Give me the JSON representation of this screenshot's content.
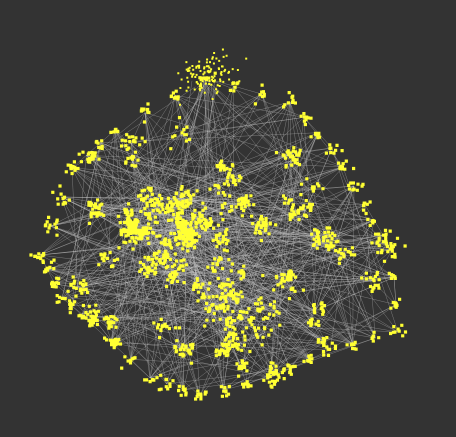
{
  "colors": {
    "background": "#333333",
    "node": "#ffff33",
    "edge": "#c8c8c8"
  },
  "graph": {
    "type": "network",
    "layout": "force-directed",
    "shape": "dense-polygon-cluster-with-top-apex-cluster",
    "edge_style": "thin-light-gray-lines",
    "node_style": "small-yellow-squares",
    "labels_visible": false
  }
}
